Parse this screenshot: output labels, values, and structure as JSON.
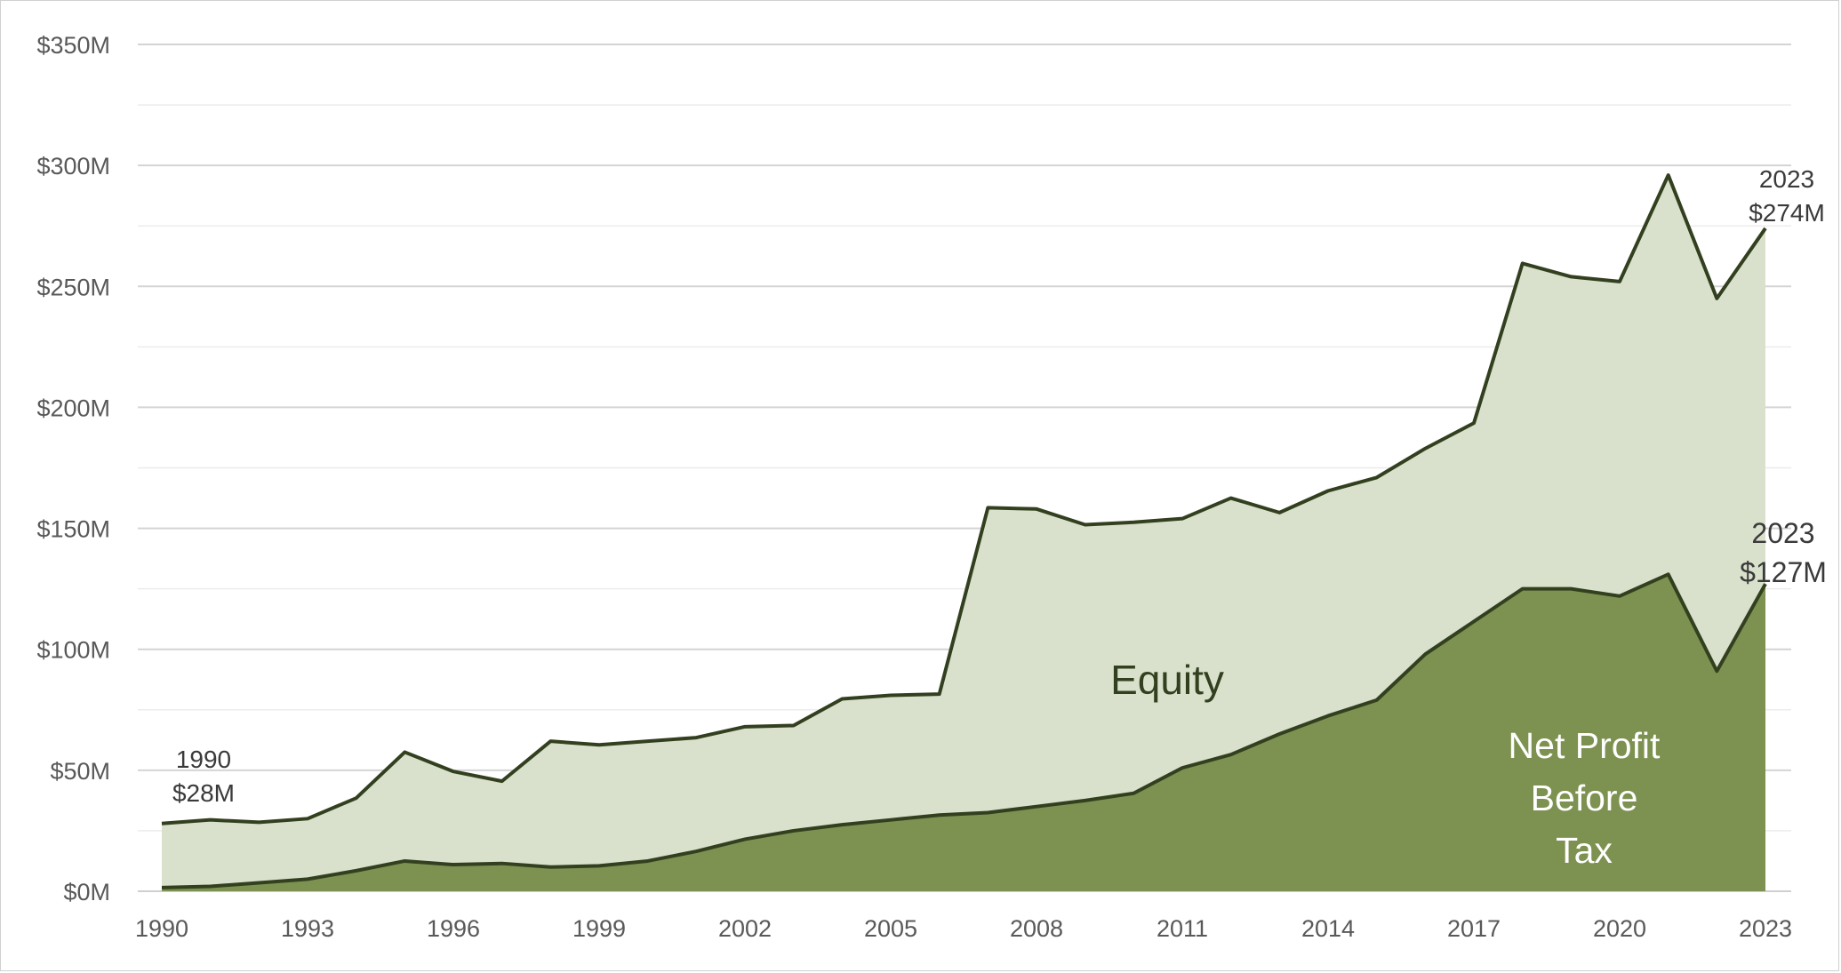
{
  "chart_data": {
    "type": "area",
    "x": [
      1990,
      1991,
      1992,
      1993,
      1994,
      1995,
      1996,
      1997,
      1998,
      1999,
      2000,
      2001,
      2002,
      2003,
      2004,
      2005,
      2006,
      2007,
      2008,
      2009,
      2010,
      2011,
      2012,
      2013,
      2014,
      2015,
      2016,
      2017,
      2018,
      2019,
      2020,
      2021,
      2022,
      2023
    ],
    "series": [
      {
        "name": "Equity",
        "values": [
          28,
          29.5,
          28.5,
          30,
          38.5,
          57.5,
          49.5,
          45.5,
          62,
          60.5,
          62,
          63.5,
          68,
          68.5,
          79.5,
          81,
          81.5,
          158.5,
          158,
          151.5,
          152.5,
          154,
          162.5,
          156.5,
          165.5,
          171,
          183,
          193.5,
          259.5,
          254,
          252,
          296,
          245,
          274
        ],
        "fill": "#d9e1cc",
        "line": "#33401f"
      },
      {
        "name": "Net Profit Before Tax",
        "values": [
          1.5,
          2,
          3.5,
          5,
          8.5,
          12.5,
          11,
          11.5,
          10,
          10.5,
          12.5,
          16.5,
          21.5,
          25,
          27.5,
          29.5,
          31.5,
          32.5,
          35,
          37.5,
          40.5,
          51,
          56.5,
          65,
          72.5,
          79,
          98,
          111.5,
          125,
          125,
          122,
          131,
          91,
          127
        ],
        "fill": "#7d9150",
        "line": "#33401f"
      }
    ],
    "ylim": [
      0,
      350
    ],
    "yticks": [
      0,
      50,
      100,
      150,
      200,
      250,
      300,
      350
    ],
    "ytick_labels": [
      "$0M",
      "$50M",
      "$100M",
      "$150M",
      "$200M",
      "$250M",
      "$300M",
      "$350M"
    ],
    "xticks": [
      1990,
      1993,
      1996,
      1999,
      2002,
      2005,
      2008,
      2011,
      2014,
      2017,
      2020,
      2023
    ],
    "xtick_labels": [
      "1990",
      "1993",
      "1996",
      "1999",
      "2002",
      "2005",
      "2008",
      "2011",
      "2014",
      "2017",
      "2020",
      "2023"
    ],
    "grid": true,
    "minor_grid": true,
    "annotations": {
      "start": {
        "year": "1990",
        "value": "$28M"
      },
      "equity_end": {
        "year": "2023",
        "value": "$274M"
      },
      "profit_end": {
        "year": "2023",
        "value": "$127M"
      }
    },
    "labels": {
      "equity": "Equity",
      "profit": [
        "Net Profit",
        "Before",
        "Tax"
      ]
    }
  }
}
